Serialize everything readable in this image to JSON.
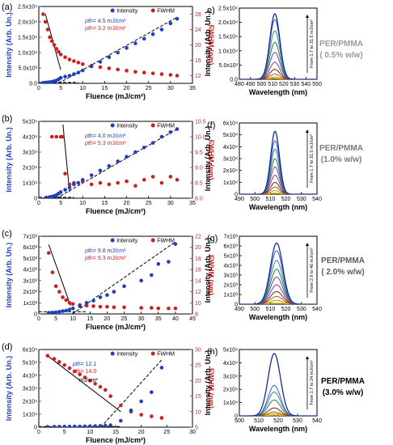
{
  "colors": {
    "intensity": "#1f3fbf",
    "fwhm": "#cc1f1f",
    "fit": "#000000",
    "spectra": [
      "#e8c000",
      "#d08a00",
      "#8a6a10",
      "#8b1a1a",
      "#7a3fa0",
      "#2a7a3a",
      "#2a8a9a",
      "#3a5ad0",
      "#1a2a90"
    ],
    "side_labels": [
      "#9a9a9a",
      "#7a7a7a",
      "#5a5a5a",
      "#000000"
    ]
  },
  "chart_data": [
    {
      "id": "a",
      "type": "scatter",
      "label": "(a)",
      "xlabel": "Fluence (mJ/cm²)",
      "ylabel": "Intensity (Arb. Un.)",
      "ylabel2": "FWHM (nm)",
      "xlim": [
        0,
        35
      ],
      "ylim": [
        0,
        25000
      ],
      "y2lim": [
        10,
        30
      ],
      "xticks": [
        0,
        5,
        10,
        15,
        20,
        25,
        30,
        35
      ],
      "xticklabels": [
        "0",
        "5",
        "10",
        "15",
        "20",
        "25",
        "30",
        "35"
      ],
      "yticks": [
        0,
        5000,
        10000,
        15000,
        20000,
        25000
      ],
      "yticklabels": [
        "0.0",
        "5.0x10³",
        "1.0x10⁴",
        "1.5x10⁴",
        "2.0x10⁴",
        "2.5x10⁴"
      ],
      "y2ticks": [
        12,
        16,
        20,
        24,
        28
      ],
      "y2ticklabels": [
        "12",
        "16",
        "20",
        "24",
        "28"
      ],
      "legend": [
        "Intensity",
        "FWHM"
      ],
      "ann1": "ρth= 4.5 mJ/cm²",
      "ann2": "ρth= 3.2 mJ/cm²",
      "ann3": "",
      "intensity_x": [
        1,
        1.5,
        2,
        2.5,
        3,
        3.5,
        4,
        4.5,
        5,
        6,
        7,
        8,
        9,
        10,
        12,
        14,
        16,
        18,
        20,
        22,
        24,
        26,
        28,
        30,
        31.5
      ],
      "intensity_y": [
        200,
        250,
        300,
        400,
        500,
        700,
        900,
        1300,
        1800,
        2200,
        2500,
        3000,
        3500,
        4200,
        5500,
        7000,
        8500,
        10000,
        11500,
        13000,
        14500,
        16000,
        17500,
        19500,
        21000
      ],
      "fwhm_x": [
        1,
        1.5,
        2,
        2.5,
        3,
        3.5,
        4,
        4.5,
        5,
        6,
        7,
        8,
        9,
        10,
        12,
        14,
        16,
        18,
        20,
        22,
        24,
        26,
        28,
        30,
        31.5
      ],
      "fwhm_y": [
        28,
        26,
        24,
        22,
        21,
        20,
        19,
        18.2,
        17.5,
        16.8,
        16.2,
        15.8,
        15.4,
        15,
        14.6,
        14.2,
        13.9,
        13.6,
        13.3,
        13,
        12.8,
        12.6,
        12.4,
        12.2,
        12
      ],
      "fit_intensity": [
        [
          4.5,
          0
        ],
        [
          31.5,
          21500
        ]
      ],
      "fit_fwhm": [
        [
          1.5,
          28
        ],
        [
          5,
          13.5
        ]
      ],
      "baseline": [
        [
          0,
          300
        ],
        [
          9,
          300
        ]
      ]
    },
    {
      "id": "b",
      "type": "scatter",
      "label": "(b)",
      "xlabel": "Fluence (mJ/cm²)",
      "ylabel": "Intensity (Arb. Un.)",
      "ylabel2": "FWHM (nm)",
      "xlim": [
        0,
        35
      ],
      "ylim": [
        0,
        50000
      ],
      "y2lim": [
        8,
        10.5
      ],
      "xticks": [
        0,
        5,
        10,
        15,
        20,
        25,
        30,
        35
      ],
      "xticklabels": [
        "0",
        "5",
        "10",
        "15",
        "20",
        "25",
        "30",
        "35"
      ],
      "yticks": [
        0,
        10000,
        20000,
        30000,
        40000,
        50000
      ],
      "yticklabels": [
        "0",
        "1x10⁴",
        "2x10⁴",
        "3x10⁴",
        "4x10⁴",
        "5x10⁴"
      ],
      "y2ticks": [
        8.0,
        8.5,
        9.0,
        9.5,
        10.0,
        10.5
      ],
      "y2ticklabels": [
        "8.0",
        "8.5",
        "9.0",
        "9.5",
        "10.0",
        "10.5"
      ],
      "legend": [
        "Intensity",
        "FWHM"
      ],
      "ann1": "ρth= 4.0 mJ/cm²",
      "ann2": "ρth= 5.3 mJ/cm²",
      "ann3": "",
      "intensity_x": [
        1.7,
        2.5,
        3,
        3.5,
        4,
        4.5,
        5,
        6,
        7,
        8,
        9,
        10,
        12,
        14,
        16,
        18,
        20,
        22,
        24,
        26,
        28,
        30,
        31.5
      ],
      "intensity_y": [
        500,
        800,
        1000,
        1500,
        2000,
        3000,
        4000,
        5500,
        7000,
        9000,
        10000,
        12000,
        15000,
        18000,
        21000,
        24000,
        27000,
        30000,
        33000,
        36000,
        40000,
        43000,
        45000
      ],
      "fwhm_x": [
        3,
        4,
        5,
        5.5,
        6,
        7,
        8,
        10,
        12,
        14,
        16,
        18,
        20,
        22,
        24,
        26,
        28,
        30,
        31.5
      ],
      "fwhm_y": [
        10,
        10,
        10,
        10,
        8.8,
        8.45,
        8.5,
        8.55,
        8.45,
        8.5,
        8.45,
        8.5,
        8.55,
        8.4,
        8.6,
        8.7,
        8.5,
        8.7,
        8.6
      ],
      "fit_intensity": [
        [
          4.0,
          0
        ],
        [
          31.5,
          45000
        ]
      ],
      "fit_fwhm": [
        [
          5.5,
          10.4
        ],
        [
          7,
          8.2
        ]
      ],
      "baseline": [
        [
          0,
          600
        ],
        [
          8,
          600
        ]
      ]
    },
    {
      "id": "c",
      "type": "scatter",
      "label": "(c)",
      "xlabel": "Fluence (mJ/cm²)",
      "ylabel": "Intensity (Arb. Un.)",
      "ylabel2": "FWHM (nm)",
      "xlim": [
        0,
        45
      ],
      "ylim": [
        0,
        7000
      ],
      "y2lim": [
        8,
        22
      ],
      "xticks": [
        0,
        5,
        10,
        15,
        20,
        25,
        30,
        35,
        40,
        45
      ],
      "xticklabels": [
        "0",
        "5",
        "10",
        "15",
        "20",
        "25",
        "30",
        "35",
        "40",
        "45"
      ],
      "yticks": [
        0,
        1000,
        2000,
        3000,
        4000,
        5000,
        6000,
        7000
      ],
      "yticklabels": [
        "0",
        "1x10³",
        "2x10³",
        "3x10³",
        "4x10³",
        "5x10³",
        "6x10³",
        "7x10³"
      ],
      "y2ticks": [
        8,
        10,
        12,
        14,
        16,
        18,
        20,
        22
      ],
      "y2ticklabels": [
        "8",
        "10",
        "12",
        "14",
        "16",
        "18",
        "20",
        "22"
      ],
      "legend": [
        "Intensity",
        "FWHM"
      ],
      "ann1": "ρth= 9.8 mJ/cm²",
      "ann2": "ρth= 9.3 mJ/cm²",
      "ann3": "",
      "intensity_x": [
        2.9,
        4,
        5,
        6,
        7,
        8,
        9,
        10,
        12,
        14,
        16,
        18,
        20,
        22,
        25,
        30,
        33,
        35,
        38,
        40
      ],
      "intensity_y": [
        100,
        120,
        150,
        200,
        250,
        300,
        400,
        500,
        700,
        1000,
        1200,
        1500,
        1700,
        2000,
        2500,
        3000,
        3500,
        4500,
        4700,
        6300
      ],
      "fwhm_x": [
        2.9,
        4,
        5,
        6,
        7,
        8,
        9,
        10,
        12,
        14,
        16,
        18,
        20,
        22,
        25,
        30,
        33,
        35,
        38,
        40
      ],
      "fwhm_y": [
        19,
        15.5,
        13,
        12,
        11,
        10.5,
        10,
        9.8,
        9.6,
        9.5,
        9.4,
        9.3,
        9.3,
        9.2,
        9.2,
        9.1,
        9.1,
        9,
        9,
        9
      ],
      "fit_intensity": [
        [
          9.8,
          0
        ],
        [
          40,
          6500
        ]
      ],
      "fit_fwhm": [
        [
          2.9,
          20.5
        ],
        [
          9.3,
          9.5
        ]
      ],
      "baseline": [
        [
          0,
          200
        ],
        [
          14,
          200
        ]
      ]
    },
    {
      "id": "d",
      "type": "scatter",
      "label": "(d)",
      "xlabel": "Fluence (mJ/cm²)",
      "ylabel": "Intensity (Arb. Un.)",
      "ylabel2": "FWHM (nm)",
      "xlim": [
        0,
        30
      ],
      "ylim": [
        0,
        60000
      ],
      "y2lim": [
        5,
        30
      ],
      "xticks": [
        0,
        5,
        10,
        15,
        20,
        25,
        30
      ],
      "xticklabels": [
        "0",
        "5",
        "10",
        "15",
        "20",
        "25",
        "30"
      ],
      "yticks": [
        0,
        10000,
        20000,
        30000,
        40000,
        50000,
        60000
      ],
      "yticklabels": [
        "0",
        "1x10⁴",
        "2x10⁴",
        "3x10⁴",
        "4x10⁴",
        "5x10⁴",
        "6x10⁴"
      ],
      "y2ticks": [
        5,
        10,
        15,
        20,
        25,
        30
      ],
      "y2ticklabels": [
        "5",
        "10",
        "15",
        "20",
        "25",
        "30"
      ],
      "legend": [
        "Intensity",
        "FWHM"
      ],
      "ann1": "ρth= 12.1",
      "ann2": "ρth= 14.0",
      "ann3": "mJ/cm²",
      "intensity_x": [
        1.7,
        3,
        4,
        5,
        6,
        7,
        8,
        9,
        10,
        11,
        12,
        13,
        14,
        16,
        18,
        20,
        22,
        24
      ],
      "intensity_y": [
        300,
        400,
        400,
        500,
        500,
        600,
        600,
        700,
        800,
        900,
        1000,
        1200,
        1500,
        5000,
        13000,
        20000,
        27000,
        46000
      ],
      "fwhm_x": [
        1.7,
        3,
        4,
        5,
        6,
        7,
        8,
        9,
        10,
        11,
        12,
        13,
        14,
        16,
        18,
        20,
        22,
        24
      ],
      "fwhm_y": [
        28,
        27,
        26,
        25,
        24,
        23,
        22,
        21,
        20,
        19,
        18,
        17,
        15,
        12,
        10,
        9,
        8.5,
        8
      ],
      "fit_intensity": [
        [
          12.1,
          0
        ],
        [
          24,
          52000
        ]
      ],
      "fit_fwhm": [
        [
          1.7,
          28
        ],
        [
          16,
          10
        ]
      ],
      "baseline": [
        [
          0,
          500
        ],
        [
          16,
          500
        ]
      ]
    },
    {
      "id": "e",
      "type": "line",
      "label": "e)",
      "xlabel": "Wavelength (nm)",
      "ylabel": "Intensity (Arb. Un.)",
      "xlim": [
        480,
        550
      ],
      "ylim": [
        0,
        25000
      ],
      "xticks": [
        480,
        490,
        500,
        510,
        520,
        530,
        540,
        550
      ],
      "xticklabels": [
        "480",
        "490",
        "500",
        "510",
        "520",
        "530",
        "540",
        "550"
      ],
      "yticks": [
        0,
        5000,
        10000,
        15000,
        20000,
        25000
      ],
      "yticklabels": [
        "0.0",
        "5.0x10³",
        "1.0x10⁴",
        "1.5x10⁴",
        "2.0x10⁴",
        "2.5x10⁴"
      ],
      "center": 512,
      "width": 4.5,
      "peaks": [
        300,
        800,
        1800,
        3500,
        6000,
        9500,
        13000,
        17000,
        21000,
        23000
      ],
      "arrow_text": "From 1.7 to 31.5 mJ/cm²"
    },
    {
      "id": "f",
      "type": "line",
      "label": "(f)",
      "xlabel": "Wavelength (nm)",
      "ylabel": "Intensity (Arb. Un.)",
      "xlim": [
        490,
        540
      ],
      "ylim": [
        0,
        60000
      ],
      "xticks": [
        490,
        500,
        510,
        520,
        530,
        540
      ],
      "xticklabels": [
        "490",
        "500",
        "510",
        "520",
        "530",
        "540"
      ],
      "yticks": [
        0,
        10000,
        20000,
        30000,
        40000,
        50000,
        60000
      ],
      "yticklabels": [
        "0",
        "1x10⁴",
        "2x10⁴",
        "3x10⁴",
        "4x10⁴",
        "5x10⁴",
        "6x10⁴"
      ],
      "center": 513,
      "width": 2.8,
      "peaks": [
        1000,
        3000,
        6000,
        10000,
        16000,
        23000,
        30000,
        38000,
        45000,
        53000
      ],
      "arrow_text": "From 1.7 to 31.5 mJ/cm²"
    },
    {
      "id": "g",
      "type": "line",
      "label": "(g)",
      "xlabel": "Wavelength (nm)",
      "ylabel": "Intensity (Arb. Un.)",
      "xlim": [
        490,
        540
      ],
      "ylim": [
        0,
        7000
      ],
      "xticks": [
        490,
        500,
        510,
        520,
        530,
        540
      ],
      "xticklabels": [
        "490",
        "500",
        "510",
        "520",
        "530",
        "540"
      ],
      "yticks": [
        0,
        1000,
        2000,
        3000,
        4000,
        5000,
        6000,
        7000
      ],
      "yticklabels": [
        "0",
        "1x10³",
        "2x10³",
        "3x10³",
        "4x10³",
        "5x10³",
        "6x10³",
        "7x10³"
      ],
      "center": 514,
      "width": 4,
      "peaks": [
        150,
        400,
        800,
        1300,
        2000,
        2800,
        3600,
        4500,
        5500,
        6300
      ],
      "arrow_text": "From 2.9 to 40 mJ/cm²"
    },
    {
      "id": "h",
      "type": "line",
      "label": "(h)",
      "xlabel": "Wavelength (nm)",
      "ylabel": "Intensity (Arb. Un.)",
      "xlim": [
        500,
        540
      ],
      "ylim": [
        0,
        50000
      ],
      "xticks": [
        500,
        510,
        520,
        530,
        540
      ],
      "xticklabels": [
        "500",
        "510",
        "520",
        "530",
        "540"
      ],
      "yticks": [
        0,
        10000,
        20000,
        30000,
        40000,
        50000
      ],
      "yticklabels": [
        "0",
        "1x10⁴",
        "2x10⁴",
        "3x10⁴",
        "4x10⁴",
        "5x10⁴"
      ],
      "center": 518,
      "width": 3.2,
      "peaks": [
        500,
        1500,
        3000,
        6000,
        12000,
        18000,
        23000,
        47000
      ],
      "arrow_text": "From 1.7 to 24 mJ/cm²"
    }
  ],
  "side_labels": [
    {
      "line1": "PER/PMMA",
      "line2": "( 0.5% w/w)"
    },
    {
      "line1": "PER/PMMA",
      "line2": "(1.0% w/w)"
    },
    {
      "line1": "PER/PMMA",
      "line2": "( 2.0% w/w)"
    },
    {
      "line1": "PER/PMMA",
      "line2": "(3.0% w/w)"
    }
  ]
}
